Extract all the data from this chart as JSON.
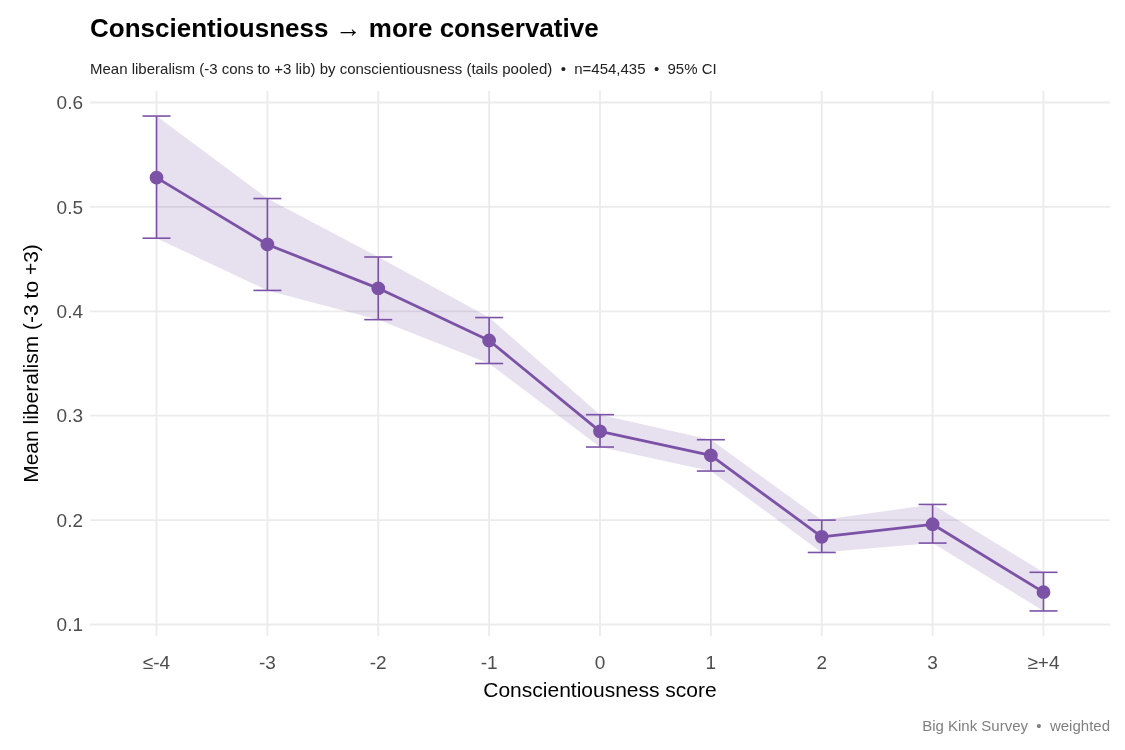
{
  "chart_data": {
    "type": "line",
    "title": "Conscientiousness → more conservative",
    "subtitle": "Mean liberalism (-3 cons to +3 lib) by conscientiousness (tails pooled)  •  n=454,435  •  95% CI",
    "xlabel": "Conscientiousness score",
    "ylabel": "Mean liberalism (-3 to +3)",
    "categories": [
      "≤-4",
      "-3",
      "-2",
      "-1",
      "0",
      "1",
      "2",
      "3",
      "≥+4"
    ],
    "series": [
      {
        "color": "#7b52a6",
        "values": [
          0.528,
          0.464,
          0.422,
          0.372,
          0.285,
          0.262,
          0.184,
          0.196,
          0.131
        ],
        "errors": [
          [
            0.47,
            0.587
          ],
          [
            0.42,
            0.508
          ],
          [
            0.392,
            0.452
          ],
          [
            0.35,
            0.394
          ],
          [
            0.27,
            0.301
          ],
          [
            0.247,
            0.277
          ],
          [
            0.169,
            0.2
          ],
          [
            0.178,
            0.215
          ],
          [
            0.113,
            0.15
          ]
        ],
        "lower": [
          0.47,
          0.42,
          0.392,
          0.35,
          0.27,
          0.247,
          0.169,
          0.178,
          0.113
        ],
        "upper": [
          0.587,
          0.508,
          0.452,
          0.394,
          0.301,
          0.277,
          0.2,
          0.215,
          0.15
        ]
      }
    ],
    "ylim": [
      0.089,
      0.611
    ],
    "yticks": [
      0.1,
      0.2,
      0.3,
      0.4,
      0.5,
      0.6
    ],
    "grid": true,
    "marker": "circle",
    "line_style": "solid",
    "annotations": [
      "Big Kink Survey  •  weighted"
    ]
  }
}
